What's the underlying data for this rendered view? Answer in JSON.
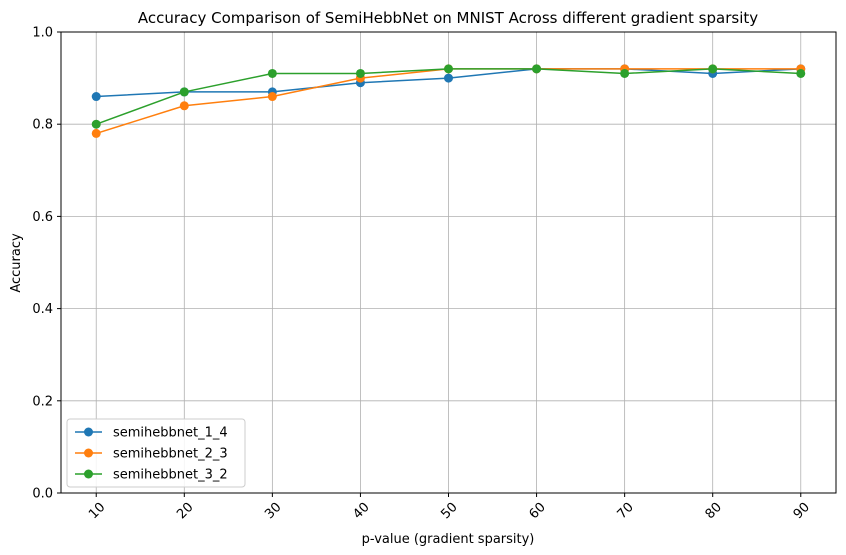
{
  "chart_data": {
    "type": "line",
    "title": "Accuracy Comparison of SemiHebbNet on MNIST Across different gradient sparsity",
    "xlabel": "p-value (gradient sparsity)",
    "ylabel": "Accuracy",
    "x": [
      10,
      20,
      30,
      40,
      50,
      60,
      70,
      80,
      90
    ],
    "x_tick_labels": [
      "10",
      "20",
      "30",
      "40",
      "50",
      "60",
      "70",
      "80",
      "90"
    ],
    "x_tick_rotation": 45,
    "ylim": [
      0.0,
      1.0
    ],
    "y_ticks": [
      0.0,
      0.2,
      0.4,
      0.6,
      0.8,
      1.0
    ],
    "y_tick_labels": [
      "0.0",
      "0.2",
      "0.4",
      "0.6",
      "0.8",
      "1.0"
    ],
    "grid": true,
    "legend_position": "lower-left",
    "marker": "circle",
    "series": [
      {
        "name": "semihebbnet_1_4",
        "color": "#1f77b4",
        "values": [
          0.86,
          0.87,
          0.87,
          0.89,
          0.9,
          0.92,
          0.92,
          0.91,
          0.92
        ]
      },
      {
        "name": "semihebbnet_2_3",
        "color": "#ff7f0e",
        "values": [
          0.78,
          0.84,
          0.86,
          0.9,
          0.92,
          0.92,
          0.92,
          0.92,
          0.92
        ]
      },
      {
        "name": "semihebbnet_3_2",
        "color": "#2ca02c",
        "values": [
          0.8,
          0.87,
          0.91,
          0.91,
          0.92,
          0.92,
          0.91,
          0.92,
          0.91
        ]
      }
    ]
  }
}
